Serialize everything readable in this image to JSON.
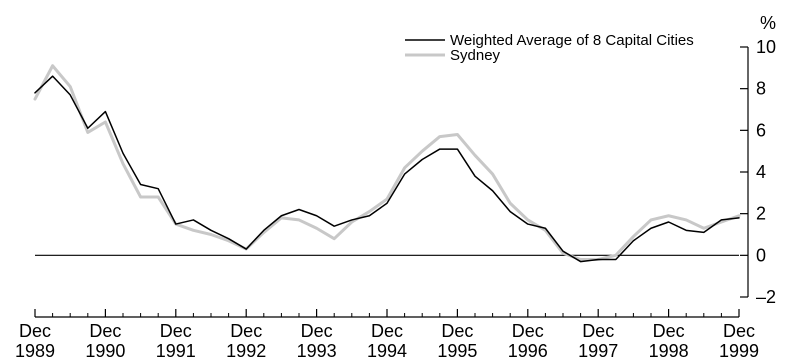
{
  "chart_data": {
    "type": "line",
    "title": "",
    "xlabel": "",
    "ylabel": "%",
    "ylim": [
      -2,
      10
    ],
    "yticks": [
      10,
      8,
      6,
      4,
      2,
      0,
      -2
    ],
    "ytick_labels": [
      "10",
      "8",
      "6",
      "4",
      "2",
      "0",
      "–2"
    ],
    "xticks": [
      {
        "top": "Dec",
        "bottom": "1989"
      },
      {
        "top": "Dec",
        "bottom": "1990"
      },
      {
        "top": "Dec",
        "bottom": "1991"
      },
      {
        "top": "Dec",
        "bottom": "1992"
      },
      {
        "top": "Dec",
        "bottom": "1993"
      },
      {
        "top": "Dec",
        "bottom": "1994"
      },
      {
        "top": "Dec",
        "bottom": "1995"
      },
      {
        "top": "Dec",
        "bottom": "1996"
      },
      {
        "top": "Dec",
        "bottom": "1997"
      },
      {
        "top": "Dec",
        "bottom": "1998"
      },
      {
        "top": "Dec",
        "bottom": "1999"
      }
    ],
    "x_period": "quarterly, Dec 1989 to Dec 1999",
    "zero_line": true,
    "legend_position": "top-right",
    "series": [
      {
        "name": "Weighted Average of 8 Capital Cities",
        "color": "#000000",
        "values": [
          7.8,
          8.6,
          7.7,
          6.1,
          6.9,
          4.9,
          3.4,
          3.2,
          1.5,
          1.7,
          1.2,
          0.8,
          0.3,
          1.2,
          1.9,
          2.2,
          1.9,
          1.4,
          1.7,
          1.9,
          2.5,
          3.9,
          4.6,
          5.1,
          5.1,
          3.8,
          3.1,
          2.1,
          1.5,
          1.3,
          0.2,
          -0.3,
          -0.2,
          -0.2,
          0.7,
          1.3,
          1.6,
          1.2,
          1.1,
          1.7,
          1.8
        ]
      },
      {
        "name": "Sydney",
        "color": "#c8c8c8",
        "values": [
          7.5,
          9.1,
          8.1,
          5.9,
          6.4,
          4.4,
          2.8,
          2.8,
          1.5,
          1.2,
          1.0,
          0.7,
          0.3,
          1.1,
          1.8,
          1.7,
          1.3,
          0.8,
          1.6,
          2.1,
          2.7,
          4.2,
          5.0,
          5.7,
          5.8,
          4.8,
          3.9,
          2.5,
          1.7,
          1.2,
          0.1,
          -0.2,
          -0.2,
          0.0,
          0.9,
          1.7,
          1.9,
          1.7,
          1.3,
          1.6,
          1.9
        ]
      }
    ]
  }
}
